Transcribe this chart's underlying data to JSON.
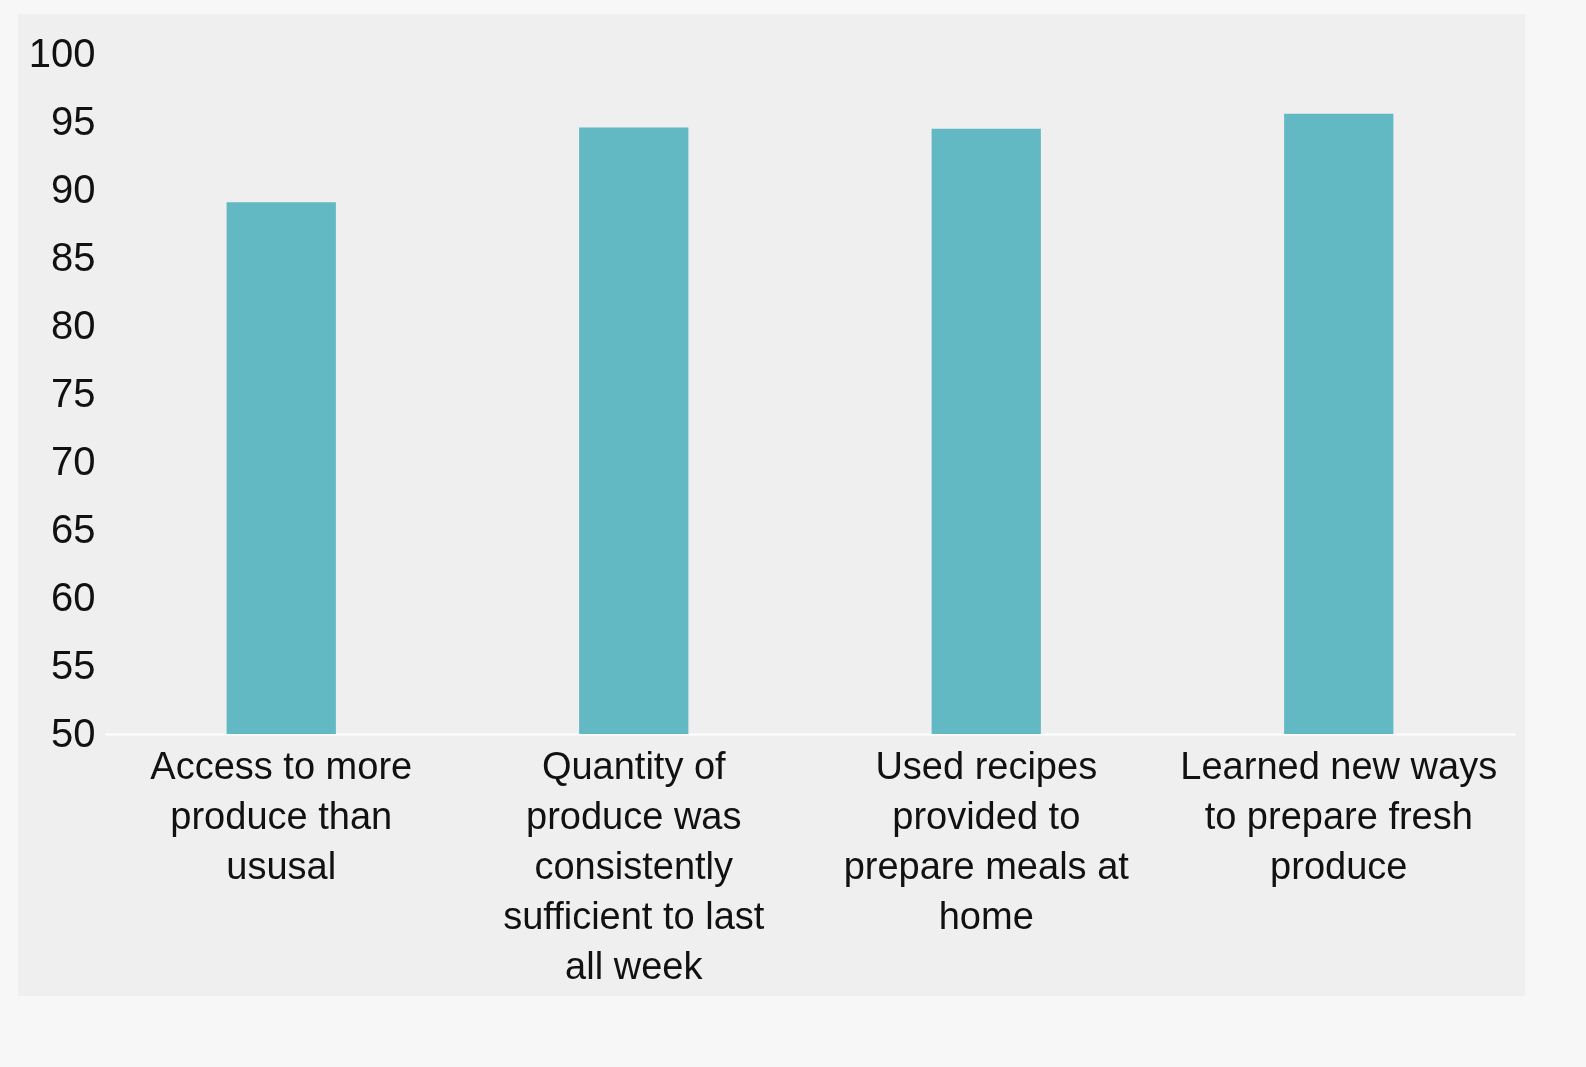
{
  "chart_data": {
    "type": "bar",
    "categories": [
      "Access to more produce than ususal",
      "Quantity of produce was consistently sufficient to last all week",
      "Used recipes provided to prepare meals at home",
      "Learned new ways to prepare fresh produce"
    ],
    "values": [
      89.1,
      94.6,
      94.5,
      95.6
    ],
    "color": "#62b9c3",
    "ylim": [
      50,
      100
    ],
    "yticks": [
      50,
      55,
      60,
      65,
      70,
      75,
      80,
      85,
      90,
      95,
      100
    ],
    "grid": false
  }
}
